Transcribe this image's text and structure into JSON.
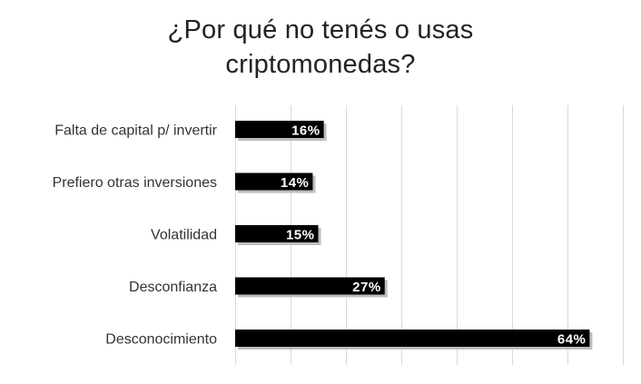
{
  "chart_data": {
    "type": "bar",
    "orientation": "horizontal",
    "title_lines": [
      "¿Por qué no tenés o usas",
      "criptomonedas?"
    ],
    "categories": [
      "Falta de capital p/ invertir",
      "Prefiero otras inversiones",
      "Volatilidad",
      "Desconfianza",
      "Desconocimiento"
    ],
    "values": [
      16,
      14,
      15,
      27,
      64
    ],
    "value_labels": [
      "16%",
      "14%",
      "15%",
      "27%",
      "64%"
    ],
    "xlim": [
      0,
      70
    ],
    "x_tick_step": 10,
    "grid": true,
    "legend": "none",
    "colors": {
      "bar": "#000000",
      "bar_shadow": "#bdbdbd",
      "grid": "#d9d9d9",
      "category_text": "#333333",
      "value_text": "#ffffff",
      "title_text": "#222222"
    }
  }
}
